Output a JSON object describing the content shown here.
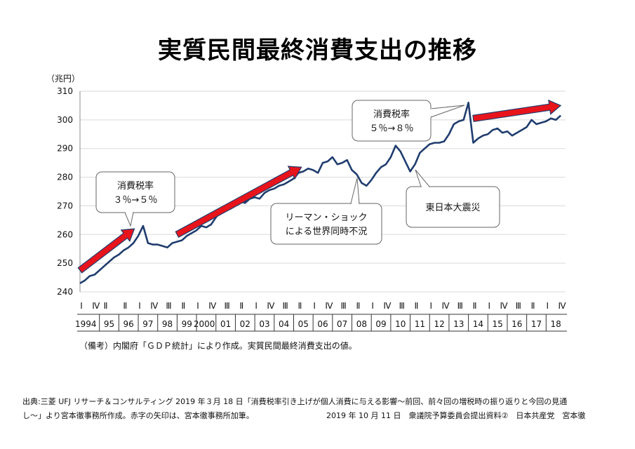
{
  "title": "実質民間最終消費支出の推移",
  "note": "（備考）内閣府「ＧＤＰ統計」により作成。実質民間最終消費支出の値。",
  "footer": {
    "line1": "出典:三菱 UFJ リサーチ＆コンサルティング 2019 年３月 18 日「消費税率引き上げが個人消費に与える影響〜前回、前々回の増税時の振り返りと今回の見通",
    "line2_left": "し〜」より宮本徹事務所作成。赤字の矢印は、宮本徹事務所加筆。",
    "line2_right": "2019 年 10 月 11 日　衆議院予算委員会提出資料②　日本共産党　宮本徹"
  },
  "colors": {
    "line": "#1f3d6e",
    "arrow": "#e8141c",
    "arrow_edge": "#1f3d6e",
    "grid": "#d9d9d9"
  },
  "chart_data": {
    "type": "line",
    "title": "実質民間最終消費支出の推移",
    "ylabel": "（兆円）",
    "ylim": [
      240,
      310
    ],
    "yticks": [
      240,
      250,
      260,
      270,
      280,
      290,
      300,
      310
    ],
    "ytick_labels": [
      "240",
      "250",
      "260",
      "270",
      "280",
      "290",
      "300",
      "310"
    ],
    "x_range": [
      1994,
      2019
    ],
    "quarter_marks": [
      {
        "x": 1994.0,
        "label": "I"
      },
      {
        "x": 1994.75,
        "label": "Ⅳ"
      },
      {
        "x": 1995.25,
        "label": "Ⅱ"
      },
      {
        "x": 1996.25,
        "label": "Ⅱ"
      },
      {
        "x": 1997.0,
        "label": "I"
      },
      {
        "x": 1997.75,
        "label": "Ⅳ"
      },
      {
        "x": 1998.5,
        "label": "Ⅲ"
      },
      {
        "x": 1999.25,
        "label": "Ⅱ"
      },
      {
        "x": 2000.0,
        "label": "I"
      },
      {
        "x": 2000.75,
        "label": "Ⅳ"
      },
      {
        "x": 2001.5,
        "label": "Ⅲ"
      },
      {
        "x": 2002.25,
        "label": "Ⅱ"
      },
      {
        "x": 2003.0,
        "label": "I"
      },
      {
        "x": 2003.75,
        "label": "Ⅳ"
      },
      {
        "x": 2004.5,
        "label": "Ⅲ"
      },
      {
        "x": 2005.25,
        "label": "Ⅱ"
      },
      {
        "x": 2006.0,
        "label": "I"
      },
      {
        "x": 2006.75,
        "label": "Ⅳ"
      },
      {
        "x": 2007.5,
        "label": "Ⅲ"
      },
      {
        "x": 2008.25,
        "label": "Ⅱ"
      },
      {
        "x": 2009.0,
        "label": "I"
      },
      {
        "x": 2009.75,
        "label": "Ⅳ"
      },
      {
        "x": 2010.5,
        "label": "Ⅲ"
      },
      {
        "x": 2011.25,
        "label": "Ⅱ"
      },
      {
        "x": 2012.0,
        "label": "I"
      },
      {
        "x": 2012.75,
        "label": "Ⅳ"
      },
      {
        "x": 2013.5,
        "label": "Ⅲ"
      },
      {
        "x": 2014.25,
        "label": "Ⅱ"
      },
      {
        "x": 2015.0,
        "label": "I"
      },
      {
        "x": 2015.75,
        "label": "Ⅳ"
      },
      {
        "x": 2016.5,
        "label": "Ⅲ"
      },
      {
        "x": 2017.25,
        "label": "Ⅱ"
      },
      {
        "x": 2018.0,
        "label": "I"
      },
      {
        "x": 2018.75,
        "label": "Ⅳ"
      }
    ],
    "year_labels": [
      {
        "x": 1994.3,
        "label": "1994"
      },
      {
        "x": 1995.5,
        "label": "95"
      },
      {
        "x": 1996.5,
        "label": "96"
      },
      {
        "x": 1997.5,
        "label": "97"
      },
      {
        "x": 1998.5,
        "label": "98"
      },
      {
        "x": 1999.5,
        "label": "99"
      },
      {
        "x": 2000.4,
        "label": "2000"
      },
      {
        "x": 2001.5,
        "label": "01"
      },
      {
        "x": 2002.5,
        "label": "02"
      },
      {
        "x": 2003.5,
        "label": "03"
      },
      {
        "x": 2004.5,
        "label": "04"
      },
      {
        "x": 2005.5,
        "label": "05"
      },
      {
        "x": 2006.5,
        "label": "06"
      },
      {
        "x": 2007.5,
        "label": "07"
      },
      {
        "x": 2008.5,
        "label": "08"
      },
      {
        "x": 2009.5,
        "label": "09"
      },
      {
        "x": 2010.5,
        "label": "10"
      },
      {
        "x": 2011.5,
        "label": "11"
      },
      {
        "x": 2012.5,
        "label": "12"
      },
      {
        "x": 2013.5,
        "label": "13"
      },
      {
        "x": 2014.5,
        "label": "14"
      },
      {
        "x": 2015.5,
        "label": "15"
      },
      {
        "x": 2016.5,
        "label": "16"
      },
      {
        "x": 2017.5,
        "label": "17"
      },
      {
        "x": 2018.5,
        "label": "18"
      }
    ],
    "series": [
      {
        "name": "実質民間最終消費支出",
        "points": [
          [
            1994.0,
            243.0
          ],
          [
            1994.25,
            244.0
          ],
          [
            1994.5,
            245.5
          ],
          [
            1994.75,
            246.0
          ],
          [
            1995.0,
            247.5
          ],
          [
            1995.25,
            249.0
          ],
          [
            1995.5,
            250.5
          ],
          [
            1995.75,
            252.0
          ],
          [
            1996.0,
            253.0
          ],
          [
            1996.25,
            254.5
          ],
          [
            1996.5,
            255.5
          ],
          [
            1996.75,
            257.0
          ],
          [
            1997.0,
            259.5
          ],
          [
            1997.25,
            263.0
          ],
          [
            1997.5,
            257.0
          ],
          [
            1997.75,
            256.5
          ],
          [
            1998.0,
            256.5
          ],
          [
            1998.25,
            256.0
          ],
          [
            1998.5,
            255.5
          ],
          [
            1998.75,
            257.0
          ],
          [
            1999.0,
            257.5
          ],
          [
            1999.25,
            258.0
          ],
          [
            1999.5,
            259.5
          ],
          [
            1999.75,
            260.5
          ],
          [
            2000.0,
            261.5
          ],
          [
            2000.25,
            263.0
          ],
          [
            2000.5,
            262.5
          ],
          [
            2000.75,
            263.5
          ],
          [
            2001.0,
            266.0
          ],
          [
            2001.25,
            268.0
          ],
          [
            2001.5,
            268.5
          ],
          [
            2001.75,
            269.0
          ],
          [
            2002.0,
            270.0
          ],
          [
            2002.25,
            271.5
          ],
          [
            2002.5,
            271.0
          ],
          [
            2002.75,
            272.5
          ],
          [
            2003.0,
            273.0
          ],
          [
            2003.25,
            272.5
          ],
          [
            2003.5,
            274.5
          ],
          [
            2003.75,
            275.5
          ],
          [
            2004.0,
            276.0
          ],
          [
            2004.25,
            277.0
          ],
          [
            2004.5,
            277.5
          ],
          [
            2004.75,
            278.5
          ],
          [
            2005.0,
            279.5
          ],
          [
            2005.25,
            281.5
          ],
          [
            2005.5,
            282.0
          ],
          [
            2005.75,
            283.0
          ],
          [
            2006.0,
            282.5
          ],
          [
            2006.25,
            281.5
          ],
          [
            2006.5,
            285.0
          ],
          [
            2006.75,
            285.5
          ],
          [
            2007.0,
            287.0
          ],
          [
            2007.25,
            284.5
          ],
          [
            2007.5,
            285.0
          ],
          [
            2007.75,
            286.0
          ],
          [
            2008.0,
            282.5
          ],
          [
            2008.25,
            281.0
          ],
          [
            2008.5,
            278.0
          ],
          [
            2008.75,
            277.0
          ],
          [
            2009.0,
            279.0
          ],
          [
            2009.25,
            281.5
          ],
          [
            2009.5,
            283.5
          ],
          [
            2009.75,
            284.5
          ],
          [
            2010.0,
            287.0
          ],
          [
            2010.25,
            291.0
          ],
          [
            2010.5,
            289.0
          ],
          [
            2010.75,
            285.5
          ],
          [
            2011.0,
            282.0
          ],
          [
            2011.25,
            284.5
          ],
          [
            2011.5,
            288.5
          ],
          [
            2011.75,
            290.0
          ],
          [
            2012.0,
            291.5
          ],
          [
            2012.25,
            292.0
          ],
          [
            2012.5,
            292.0
          ],
          [
            2012.75,
            292.5
          ],
          [
            2013.0,
            295.0
          ],
          [
            2013.25,
            298.5
          ],
          [
            2013.5,
            299.5
          ],
          [
            2013.75,
            300.0
          ],
          [
            2014.0,
            306.0
          ],
          [
            2014.25,
            292.0
          ],
          [
            2014.5,
            293.5
          ],
          [
            2014.75,
            294.5
          ],
          [
            2015.0,
            295.0
          ],
          [
            2015.25,
            296.5
          ],
          [
            2015.5,
            297.0
          ],
          [
            2015.75,
            295.5
          ],
          [
            2016.0,
            296.0
          ],
          [
            2016.25,
            294.5
          ],
          [
            2016.5,
            295.5
          ],
          [
            2016.75,
            296.5
          ],
          [
            2017.0,
            297.5
          ],
          [
            2017.25,
            300.0
          ],
          [
            2017.5,
            298.5
          ],
          [
            2017.75,
            299.0
          ],
          [
            2018.0,
            299.5
          ],
          [
            2018.25,
            300.5
          ],
          [
            2018.5,
            300.0
          ],
          [
            2018.75,
            301.5
          ]
        ]
      }
    ],
    "arrows": [
      {
        "from": [
          1994.0,
          247.5
        ],
        "to": [
          1996.8,
          262.0
        ]
      },
      {
        "from": [
          1999.0,
          260.0
        ],
        "to": [
          2005.4,
          283.5
        ]
      },
      {
        "from": [
          2014.25,
          300.5
        ],
        "to": [
          2018.75,
          305.0
        ]
      }
    ],
    "annotations": [
      {
        "id": "tax1",
        "lines": [
          "消費税率",
          "３％→５％"
        ],
        "anchor": "upper-left"
      },
      {
        "id": "lehman",
        "lines": [
          "リーマン・ショック",
          "による世界同時不況"
        ],
        "anchor": "center"
      },
      {
        "id": "tax2",
        "lines": [
          "消費税率",
          "５％→８％"
        ],
        "anchor": "top-center"
      },
      {
        "id": "quake",
        "lines": [
          "東日本大震災"
        ],
        "anchor": "right"
      }
    ]
  }
}
